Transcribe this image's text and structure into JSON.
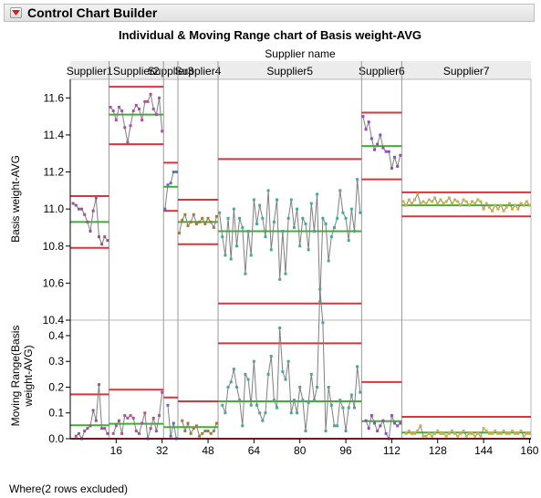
{
  "app": {
    "title": "Control Chart Builder",
    "footnote": "Where(2 rows excluded)"
  },
  "chart_data": {
    "type": "line",
    "title": "Individual & Moving Range chart of Basis weight-AVG",
    "phase_label": "Supplier name",
    "phases": [
      {
        "name": "Supplier1",
        "start": 1,
        "end": 13,
        "color": "#8e5a8c",
        "avg": 10.93,
        "ucl": 11.07,
        "lcl": 10.79,
        "mr_avg": 0.052,
        "mr_ucl": 0.172,
        "values": [
          11.03,
          11.02,
          11.0,
          11.0,
          10.97,
          10.93,
          10.88,
          10.99,
          11.06,
          10.85,
          10.81,
          10.85,
          10.83
        ]
      },
      {
        "name": "Supplier2",
        "start": 14,
        "end": 32,
        "color": "#a8559c",
        "avg": 11.51,
        "ucl": 11.66,
        "lcl": 11.35,
        "mr_avg": 0.058,
        "mr_ucl": 0.19,
        "values": [
          11.55,
          11.53,
          11.48,
          11.55,
          11.53,
          11.44,
          11.36,
          11.45,
          11.53,
          11.56,
          11.54,
          11.48,
          11.58,
          11.58,
          11.62,
          11.54,
          11.51,
          11.6,
          11.42
        ]
      },
      {
        "name": "Supplier3",
        "start": 33,
        "end": 37,
        "color": "#5c6fc6",
        "avg": 11.12,
        "ucl": 11.25,
        "lcl": 10.99,
        "mr_avg": 0.045,
        "mr_ucl": 0.16,
        "values": [
          11.0,
          11.13,
          11.14,
          11.2,
          11.2
        ]
      },
      {
        "name": "Supplier4",
        "start": 38,
        "end": 51,
        "color": "#a47a3c",
        "avg": 10.93,
        "ucl": 11.05,
        "lcl": 10.81,
        "mr_avg": 0.045,
        "mr_ucl": 0.145,
        "values": [
          10.87,
          10.94,
          10.97,
          10.91,
          10.93,
          10.97,
          10.92,
          10.93,
          10.95,
          10.92,
          10.95,
          10.93,
          10.9,
          10.96
        ]
      },
      {
        "name": "Supplier5",
        "start": 52,
        "end": 101,
        "color": "#4aa69e",
        "avg": 10.88,
        "ucl": 11.27,
        "lcl": 10.49,
        "mr_avg": 0.145,
        "mr_ucl": 0.37,
        "values": [
          10.98,
          10.85,
          10.75,
          10.95,
          10.73,
          11.0,
          10.8,
          10.95,
          10.9,
          10.65,
          10.88,
          10.75,
          11.05,
          10.92,
          11.02,
          10.95,
          10.85,
          11.1,
          10.78,
          10.93,
          11.05,
          10.62,
          10.88,
          10.65,
          10.95,
          11.05,
          10.9,
          11.0,
          10.8,
          10.95,
          10.92,
          10.78,
          11.03,
          10.88,
          11.08,
          10.5,
          10.95,
          10.92,
          10.72,
          10.85,
          10.9,
          10.95,
          11.1,
          10.98,
          10.95,
          10.83,
          11.0,
          10.88,
          11.16,
          10.98
        ]
      },
      {
        "name": "Supplier6",
        "start": 102,
        "end": 115,
        "color": "#8f4fb8",
        "avg": 11.34,
        "ucl": 11.52,
        "lcl": 11.16,
        "mr_avg": 0.068,
        "mr_ucl": 0.22,
        "values": [
          11.5,
          11.43,
          11.47,
          11.38,
          11.32,
          11.35,
          11.4,
          11.33,
          11.31,
          11.31,
          11.22,
          11.28,
          11.23,
          11.29
        ]
      },
      {
        "name": "Supplier7",
        "start": 116,
        "end": 160,
        "color": "#c9b04a",
        "avg": 11.02,
        "ucl": 11.09,
        "lcl": 10.96,
        "mr_avg": 0.024,
        "mr_ucl": 0.085,
        "values": [
          11.04,
          11.02,
          11.05,
          11.03,
          11.05,
          11.08,
          11.03,
          11.04,
          11.03,
          11.05,
          11.04,
          11.06,
          11.03,
          11.05,
          11.03,
          11.04,
          11.06,
          11.03,
          11.05,
          11.04,
          11.02,
          11.05,
          11.04,
          11.02,
          11.04,
          11.03,
          11.05,
          11.04,
          11.0,
          11.03,
          11.01,
          10.99,
          11.02,
          11.0,
          11.02,
          10.99,
          11.01,
          11.03,
          11.0,
          11.02,
          11.0,
          11.03,
          11.02,
          11.04,
          11.02
        ]
      }
    ],
    "individual": {
      "ylabel": "Basis weight-AVG",
      "ylim": [
        10.4,
        11.7
      ],
      "yticks": [
        "11.6",
        "11.4",
        "11.2",
        "11.0",
        "10.8",
        "10.6",
        "10.4"
      ]
    },
    "moving_range": {
      "ylabel": "Moving Range(Basis weight-AVG)",
      "ylim": [
        0,
        0.46
      ],
      "yticks": [
        "0.4",
        "0.3",
        "0.2",
        "0.1",
        "0.0"
      ]
    },
    "xlim": [
      0,
      160.5
    ],
    "xticks": [
      "16",
      "32",
      "48",
      "64",
      "80",
      "96",
      "112",
      "128",
      "144",
      "160"
    ],
    "grid": false,
    "colors": {
      "limit": "#d9353e",
      "center": "#3fae35",
      "line": "#7f7f7f",
      "divider": "#9a9a9a"
    }
  }
}
